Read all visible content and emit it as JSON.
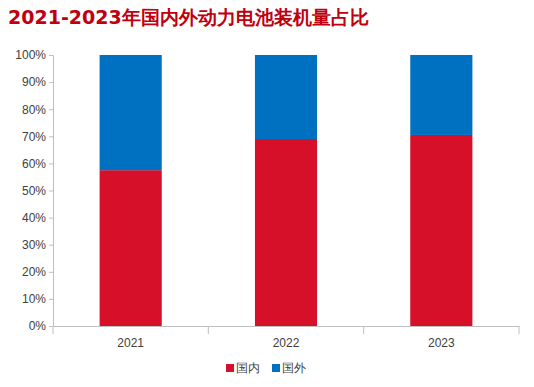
{
  "chart_data": {
    "type": "bar",
    "title": "2021-2023年国内外动力电池装机量占比",
    "categories": [
      "2021",
      "2022",
      "2023"
    ],
    "series": [
      {
        "name": "国内",
        "color": "#d7102a",
        "values": [
          57.5,
          69,
          70.5
        ]
      },
      {
        "name": "国外",
        "color": "#0070c0",
        "values": [
          42.5,
          31,
          29.5
        ]
      }
    ],
    "stacked": true,
    "ylim": [
      0,
      100
    ],
    "yticks": [
      {
        "value": 0,
        "label": "0%"
      },
      {
        "value": 10,
        "label": "10%"
      },
      {
        "value": 20,
        "label": "20%"
      },
      {
        "value": 30,
        "label": "30%"
      },
      {
        "value": 40,
        "label": "40%"
      },
      {
        "value": 50,
        "label": "50%"
      },
      {
        "value": 60,
        "label": "60%"
      },
      {
        "value": 70,
        "label": "70%"
      },
      {
        "value": 80,
        "label": "80%"
      },
      {
        "value": 90,
        "label": "90%"
      },
      {
        "value": 100,
        "label": "100%"
      }
    ],
    "grid": false,
    "legend": "bottom"
  }
}
